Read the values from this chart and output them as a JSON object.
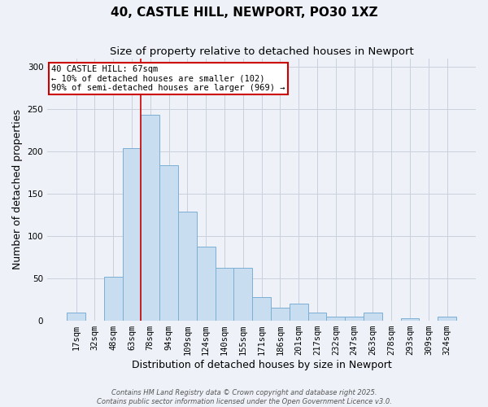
{
  "title": "40, CASTLE HILL, NEWPORT, PO30 1XZ",
  "subtitle": "Size of property relative to detached houses in Newport",
  "xlabel": "Distribution of detached houses by size in Newport",
  "ylabel": "Number of detached properties",
  "bar_labels": [
    "17sqm",
    "32sqm",
    "48sqm",
    "63sqm",
    "78sqm",
    "94sqm",
    "109sqm",
    "124sqm",
    "140sqm",
    "155sqm",
    "171sqm",
    "186sqm",
    "201sqm",
    "217sqm",
    "232sqm",
    "247sqm",
    "263sqm",
    "278sqm",
    "293sqm",
    "309sqm",
    "324sqm"
  ],
  "bar_values": [
    10,
    0,
    52,
    204,
    243,
    184,
    129,
    88,
    63,
    63,
    28,
    15,
    20,
    10,
    5,
    5,
    10,
    0,
    3,
    0,
    5
  ],
  "bar_color": "#c9ddf0",
  "bar_edge_color": "#7bafd4",
  "grid_color": "#c8d0dc",
  "bg_color": "#eef2f8",
  "red_line_index": 4,
  "annotation_title": "40 CASTLE HILL: 67sqm",
  "annotation_line1": "← 10% of detached houses are smaller (102)",
  "annotation_line2": "90% of semi-detached houses are larger (969) →",
  "annotation_box_color": "#ffffff",
  "annotation_box_edge": "#cc0000",
  "red_line_color": "#cc0000",
  "footer1": "Contains HM Land Registry data © Crown copyright and database right 2025.",
  "footer2": "Contains public sector information licensed under the Open Government Licence v3.0.",
  "ylim": [
    0,
    310
  ],
  "title_fontsize": 11,
  "subtitle_fontsize": 9.5,
  "axis_label_fontsize": 9,
  "tick_fontsize": 7.5,
  "annotation_fontsize": 7.5,
  "footer_fontsize": 6
}
